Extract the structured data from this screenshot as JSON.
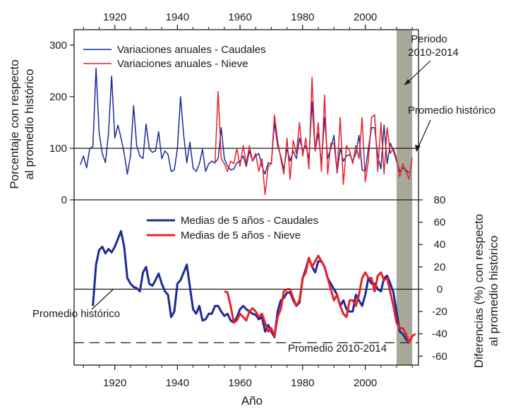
{
  "colors": {
    "caudales": "#1c2a94",
    "nieve": "#e8202a",
    "shade": "#a8a89a",
    "axis": "#1a1a1a"
  },
  "labels": {
    "xlabel": "Año",
    "ylabel_top_1": "Porcentaje con respecto",
    "ylabel_top_2": "al promedio histórico",
    "ylabel_bottom_1": "Diferencias (%) con respecto",
    "ylabel_bottom_2": "al promedio histórico",
    "periodo_1": "Periodo",
    "periodo_2": "2010-2014",
    "promedio_top": "Promedio histórico",
    "promedio_bottom": "Promedio histórico",
    "promedio_2010": "Promedio 2010-2014"
  },
  "chart_data": [
    {
      "type": "line",
      "panel": "top",
      "ylim": [
        0,
        330
      ],
      "xlim": [
        1907,
        2017
      ],
      "yticks": [
        0,
        100,
        200,
        300
      ],
      "xticks": [
        1920,
        1940,
        1960,
        1980,
        2000
      ],
      "reference_line": 100,
      "shaded_period": [
        2010,
        2014
      ],
      "legend_position": "top-left",
      "series": [
        {
          "name": "Variaciones anuales - Caudales",
          "x": [
            1909,
            1910,
            1911,
            1912,
            1913,
            1914,
            1915,
            1916,
            1917,
            1918,
            1919,
            1920,
            1921,
            1922,
            1923,
            1924,
            1925,
            1926,
            1927,
            1928,
            1929,
            1930,
            1931,
            1932,
            1933,
            1934,
            1935,
            1936,
            1937,
            1938,
            1939,
            1940,
            1941,
            1942,
            1943,
            1944,
            1945,
            1946,
            1947,
            1948,
            1949,
            1950,
            1951,
            1952,
            1953,
            1954,
            1955,
            1956,
            1957,
            1958,
            1959,
            1960,
            1961,
            1962,
            1963,
            1964,
            1965,
            1966,
            1967,
            1968,
            1969,
            1970,
            1971,
            1972,
            1973,
            1974,
            1975,
            1976,
            1977,
            1978,
            1979,
            1980,
            1981,
            1982,
            1983,
            1984,
            1985,
            1986,
            1987,
            1988,
            1989,
            1990,
            1991,
            1992,
            1993,
            1994,
            1995,
            1996,
            1997,
            1998,
            1999,
            2000,
            2001,
            2002,
            2003,
            2004,
            2005,
            2006,
            2007,
            2008,
            2009,
            2010,
            2011,
            2012,
            2013,
            2014
          ],
          "values": [
            68,
            85,
            62,
            100,
            103,
            255,
            130,
            90,
            72,
            130,
            240,
            120,
            145,
            120,
            90,
            50,
            85,
            183,
            105,
            85,
            80,
            147,
            100,
            92,
            95,
            132,
            80,
            95,
            88,
            55,
            58,
            100,
            200,
            125,
            72,
            112,
            62,
            55,
            70,
            98,
            55,
            70,
            75,
            72,
            80,
            140,
            80,
            65,
            58,
            60,
            72,
            75,
            85,
            65,
            95,
            75,
            85,
            90,
            65,
            50,
            72,
            70,
            150,
            105,
            85,
            58,
            100,
            75,
            95,
            80,
            120,
            95,
            105,
            80,
            190,
            95,
            130,
            70,
            160,
            80,
            100,
            125,
            52,
            100,
            75,
            85,
            88,
            75,
            90,
            125,
            58,
            55,
            100,
            140,
            140,
            85,
            60,
            145,
            70,
            110,
            95,
            75,
            55,
            62,
            58,
            52
          ],
          "line_width": 1.5
        },
        {
          "name": "Variaciones anuales - Nieve",
          "x": [
            1952,
            1953,
            1954,
            1955,
            1956,
            1957,
            1958,
            1959,
            1960,
            1961,
            1962,
            1963,
            1964,
            1965,
            1966,
            1967,
            1968,
            1969,
            1970,
            1971,
            1972,
            1973,
            1974,
            1975,
            1976,
            1977,
            1978,
            1979,
            1980,
            1981,
            1982,
            1983,
            1984,
            1985,
            1986,
            1987,
            1988,
            1989,
            1990,
            1991,
            1992,
            1993,
            1994,
            1995,
            1996,
            1997,
            1998,
            1999,
            2000,
            2001,
            2002,
            2003,
            2004,
            2005,
            2006,
            2007,
            2008,
            2009,
            2010,
            2011,
            2012,
            2013,
            2014,
            2015
          ],
          "values": [
            70,
            210,
            80,
            70,
            55,
            75,
            70,
            100,
            65,
            105,
            70,
            105,
            75,
            90,
            55,
            80,
            10,
            65,
            70,
            165,
            115,
            80,
            50,
            120,
            40,
            115,
            90,
            150,
            85,
            120,
            60,
            238,
            95,
            150,
            55,
            203,
            50,
            110,
            110,
            55,
            160,
            30,
            105,
            95,
            70,
            105,
            80,
            160,
            35,
            75,
            160,
            165,
            55,
            150,
            50,
            140,
            90,
            100,
            80,
            45,
            70,
            55,
            40,
            82
          ],
          "line_width": 1.5
        }
      ]
    },
    {
      "type": "line",
      "panel": "bottom",
      "ylim": [
        -68,
        80
      ],
      "xlim": [
        1907,
        2017
      ],
      "yticks": [
        -60,
        -40,
        -20,
        0,
        20,
        40,
        60,
        80
      ],
      "xticks": [
        1920,
        1940,
        1960,
        1980,
        2000
      ],
      "reference_line": 0,
      "mean_2010_2014": -48,
      "shaded_period": [
        2010,
        2014
      ],
      "legend_position": "top-left",
      "series": [
        {
          "name": "Medias de 5 años - Caudales",
          "x": [
            1913,
            1914,
            1915,
            1916,
            1917,
            1918,
            1919,
            1920,
            1921,
            1922,
            1923,
            1924,
            1925,
            1926,
            1927,
            1928,
            1929,
            1930,
            1931,
            1932,
            1933,
            1934,
            1935,
            1936,
            1937,
            1938,
            1939,
            1940,
            1941,
            1942,
            1943,
            1944,
            1945,
            1946,
            1947,
            1948,
            1949,
            1950,
            1951,
            1952,
            1953,
            1954,
            1955,
            1956,
            1957,
            1958,
            1959,
            1960,
            1961,
            1962,
            1963,
            1964,
            1965,
            1966,
            1967,
            1968,
            1969,
            1970,
            1971,
            1972,
            1973,
            1974,
            1975,
            1976,
            1977,
            1978,
            1979,
            1980,
            1981,
            1982,
            1983,
            1984,
            1985,
            1986,
            1987,
            1988,
            1989,
            1990,
            1991,
            1992,
            1993,
            1994,
            1995,
            1996,
            1997,
            1998,
            1999,
            2000,
            2001,
            2002,
            2003,
            2004,
            2005,
            2006,
            2007,
            2008,
            2009,
            2010,
            2011,
            2012,
            2013,
            2014
          ],
          "values": [
            -15,
            22,
            35,
            38,
            32,
            36,
            33,
            38,
            45,
            52,
            38,
            10,
            5,
            2,
            1,
            -2,
            15,
            20,
            5,
            3,
            8,
            14,
            5,
            -2,
            -5,
            -25,
            -20,
            5,
            8,
            15,
            22,
            2,
            -18,
            -22,
            -15,
            -28,
            -27,
            -22,
            -22,
            -15,
            -15,
            -20,
            -24,
            -22,
            -28,
            -30,
            -25,
            -18,
            -15,
            -18,
            -20,
            -22,
            -23,
            -27,
            -25,
            -38,
            -32,
            -38,
            -43,
            -20,
            -10,
            -8,
            -3,
            -3,
            -10,
            -15,
            -12,
            10,
            18,
            28,
            20,
            15,
            25,
            25,
            20,
            10,
            5,
            0,
            -5,
            -15,
            -10,
            -18,
            -20,
            -20,
            -5,
            -10,
            -15,
            -5,
            10,
            5,
            5,
            0,
            -2,
            10,
            12,
            5,
            -3,
            -20,
            -38,
            -40,
            -45,
            -48
          ],
          "line_width": 3
        },
        {
          "name": "Medias de 5 años - Nieve",
          "x": [
            1955,
            1956,
            1957,
            1958,
            1959,
            1960,
            1961,
            1962,
            1963,
            1964,
            1965,
            1966,
            1967,
            1968,
            1969,
            1970,
            1971,
            1972,
            1973,
            1974,
            1975,
            1976,
            1977,
            1978,
            1979,
            1980,
            1981,
            1982,
            1983,
            1984,
            1985,
            1986,
            1987,
            1988,
            1989,
            1990,
            1991,
            1992,
            1993,
            1994,
            1995,
            1996,
            1997,
            1998,
            1999,
            2000,
            2001,
            2002,
            2003,
            2004,
            2005,
            2006,
            2007,
            2008,
            2009,
            2010,
            2011,
            2012,
            2013,
            2014,
            2015,
            2016
          ],
          "values": [
            -2,
            -3,
            -15,
            -30,
            -28,
            -22,
            -25,
            -28,
            -20,
            -17,
            -20,
            -25,
            -22,
            -30,
            -38,
            -35,
            -42,
            -25,
            -18,
            -2,
            0,
            0,
            -8,
            -15,
            -10,
            10,
            15,
            28,
            20,
            25,
            30,
            25,
            20,
            10,
            0,
            -10,
            -5,
            -15,
            -22,
            -25,
            -10,
            -10,
            -15,
            -5,
            10,
            15,
            10,
            10,
            -2,
            12,
            15,
            8,
            10,
            -3,
            -15,
            -30,
            -35,
            -35,
            -40,
            -48,
            -42,
            -40
          ],
          "line_width": 3
        }
      ]
    }
  ]
}
